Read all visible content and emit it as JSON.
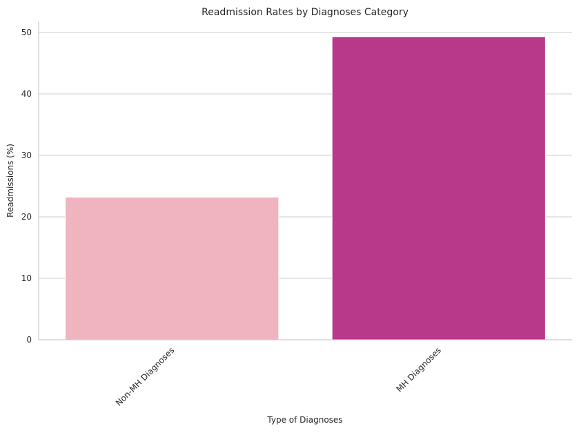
{
  "chart_data": {
    "type": "bar",
    "title": "Readmission Rates by Diagnoses Category",
    "xlabel": "Type of Diagnoses",
    "ylabel": "Readmissions (%)",
    "categories": [
      "Non-MH Diagnoses",
      "MH Diagnoses"
    ],
    "values": [
      23.2,
      49.3
    ],
    "colors": [
      "#f0b3c0",
      "#b8398a"
    ],
    "ylim": [
      0,
      51.8
    ],
    "yticks": [
      0,
      10,
      20,
      30,
      40,
      50
    ],
    "grid": "horizontal",
    "xtick_rotation": 45
  }
}
